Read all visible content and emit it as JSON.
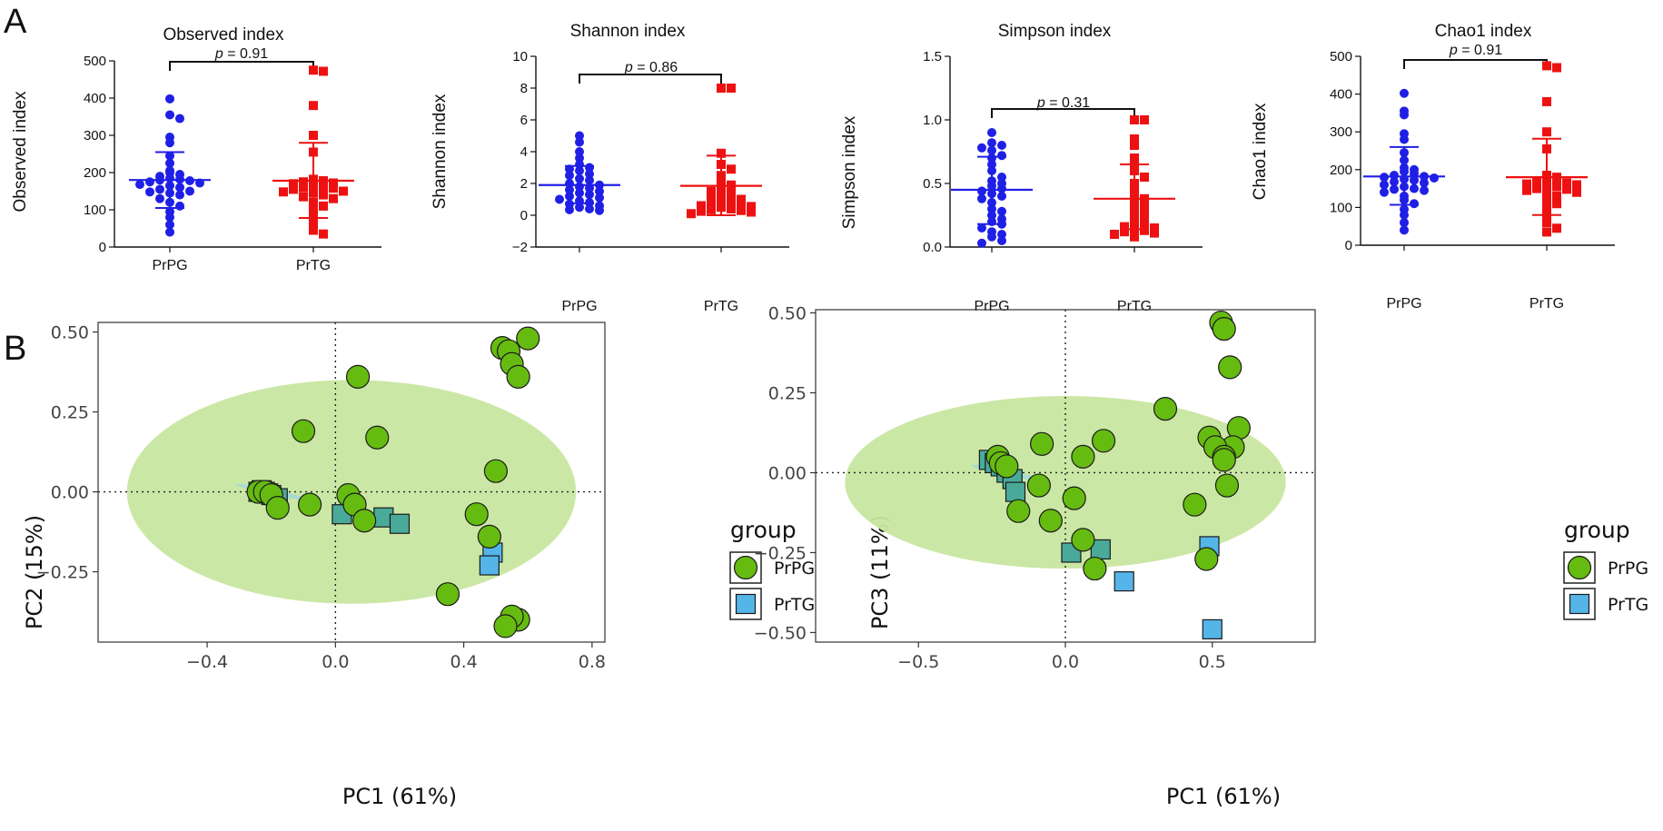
{
  "panels": {
    "A": "A",
    "B": "B"
  },
  "colors": {
    "prpg": "#1f1fe6",
    "prtg": "#ee1111",
    "green": "#66bb11",
    "blue": "#55b5e8",
    "teal": "#4aaa9a",
    "ellipse": "#c8e6a0"
  },
  "chart_data": [
    {
      "type": "scatter",
      "title": "Observed index",
      "ylabel": "Observed index",
      "ylim": [
        0,
        500
      ],
      "yticks": [
        0,
        100,
        200,
        300,
        400,
        500
      ],
      "categories": [
        "PrPG",
        "PrTG"
      ],
      "p_prefix": "p",
      "p_text": " = 0.91",
      "series": [
        {
          "name": "PrPG",
          "marker": "circle",
          "mean": 180,
          "sd_low": 105,
          "sd_high": 255,
          "values": [
            398,
            355,
            345,
            295,
            280,
            245,
            225,
            205,
            200,
            195,
            190,
            185,
            182,
            180,
            178,
            175,
            172,
            168,
            165,
            160,
            155,
            150,
            148,
            145,
            140,
            130,
            120,
            110,
            95,
            80,
            60,
            40
          ]
        },
        {
          "name": "PrTG",
          "marker": "square",
          "mean": 178,
          "sd_low": 78,
          "sd_high": 280,
          "values": [
            475,
            472,
            380,
            300,
            255,
            182,
            178,
            175,
            172,
            170,
            165,
            162,
            160,
            158,
            155,
            150,
            148,
            145,
            140,
            135,
            130,
            120,
            110,
            100,
            80,
            60,
            45,
            35
          ]
        }
      ]
    },
    {
      "type": "scatter",
      "title": "Shannon index",
      "ylabel": "Shannon index",
      "ylim": [
        -2,
        10
      ],
      "yticks": [
        -2,
        0,
        2,
        4,
        6,
        8,
        10
      ],
      "categories": [
        "PrPG",
        "PrTG"
      ],
      "p_prefix": "p",
      "p_text": " = 0.86",
      "series": [
        {
          "name": "PrPG",
          "marker": "circle",
          "mean": 1.9,
          "sd_low": 0.75,
          "sd_high": 3.1,
          "values": [
            5.0,
            4.6,
            4.0,
            3.6,
            3.2,
            3.0,
            2.9,
            2.8,
            2.6,
            2.5,
            2.3,
            2.2,
            2.0,
            1.9,
            1.8,
            1.7,
            1.6,
            1.5,
            1.4,
            1.3,
            1.2,
            1.1,
            1.0,
            0.9,
            0.8,
            0.7,
            0.6,
            0.5,
            0.4,
            0.35,
            0.3
          ]
        },
        {
          "name": "PrTG",
          "marker": "square",
          "mean": 1.85,
          "sd_low": 0.0,
          "sd_high": 3.75,
          "values": [
            8.0,
            8.0,
            3.9,
            3.2,
            2.9,
            2.5,
            2.0,
            1.9,
            1.8,
            1.6,
            1.5,
            1.3,
            1.2,
            1.1,
            1.0,
            0.9,
            0.85,
            0.8,
            0.7,
            0.6,
            0.55,
            0.5,
            0.4,
            0.35,
            0.3,
            0.25,
            0.2,
            0.1
          ]
        }
      ]
    },
    {
      "type": "scatter",
      "title": "Simpson index",
      "ylabel": "Simpson index",
      "ylim": [
        0,
        1.5
      ],
      "yticks": [
        0.0,
        0.5,
        1.0,
        1.5
      ],
      "categories": [
        "PrPG",
        "PrTG"
      ],
      "p_prefix": "p",
      "p_text": " = 0.31",
      "series": [
        {
          "name": "PrPG",
          "marker": "circle",
          "mean": 0.45,
          "sd_low": 0.18,
          "sd_high": 0.71,
          "values": [
            0.9,
            0.82,
            0.8,
            0.78,
            0.76,
            0.72,
            0.7,
            0.65,
            0.6,
            0.55,
            0.52,
            0.5,
            0.48,
            0.46,
            0.44,
            0.42,
            0.4,
            0.38,
            0.35,
            0.3,
            0.28,
            0.25,
            0.22,
            0.2,
            0.18,
            0.15,
            0.12,
            0.1,
            0.08,
            0.05,
            0.03
          ]
        },
        {
          "name": "PrTG",
          "marker": "square",
          "mean": 0.38,
          "sd_low": 0.14,
          "sd_high": 0.65,
          "values": [
            1.0,
            1.0,
            0.85,
            0.8,
            0.7,
            0.65,
            0.6,
            0.55,
            0.5,
            0.45,
            0.4,
            0.38,
            0.35,
            0.32,
            0.3,
            0.28,
            0.25,
            0.22,
            0.2,
            0.18,
            0.16,
            0.15,
            0.14,
            0.13,
            0.12,
            0.11,
            0.1,
            0.08
          ]
        }
      ]
    },
    {
      "type": "scatter",
      "title": "Chao1 index",
      "ylabel": "Chao1 index",
      "ylim": [
        0,
        500
      ],
      "yticks": [
        0,
        100,
        200,
        300,
        400,
        500
      ],
      "categories": [
        "PrPG",
        "PrTG"
      ],
      "p_prefix": "p",
      "p_text": " = 0.91",
      "series": [
        {
          "name": "PrPG",
          "marker": "circle",
          "mean": 182,
          "sd_low": 107,
          "sd_high": 260,
          "values": [
            402,
            355,
            345,
            295,
            280,
            245,
            225,
            205,
            200,
            195,
            190,
            185,
            182,
            180,
            178,
            175,
            172,
            168,
            165,
            160,
            155,
            150,
            148,
            145,
            140,
            130,
            120,
            110,
            95,
            80,
            60,
            40
          ]
        },
        {
          "name": "PrTG",
          "marker": "square",
          "mean": 180,
          "sd_low": 80,
          "sd_high": 282,
          "values": [
            475,
            470,
            380,
            300,
            255,
            185,
            180,
            175,
            172,
            170,
            165,
            162,
            160,
            158,
            155,
            150,
            148,
            145,
            140,
            135,
            130,
            120,
            110,
            100,
            80,
            60,
            45,
            35
          ]
        }
      ]
    },
    {
      "type": "scatter",
      "xlabel": "PC1 (61%)",
      "ylabel": "PC2 (15%)",
      "xlim": [
        -0.74,
        0.84
      ],
      "ylim": [
        -0.47,
        0.53
      ],
      "xticks": [
        -0.4,
        0.0,
        0.4,
        0.8
      ],
      "xtick_labels": [
        "−0.4",
        "0.0",
        "0.4",
        "0.8"
      ],
      "yticks": [
        -0.25,
        0.0,
        0.25,
        0.5
      ],
      "ytick_labels": [
        "−0.25",
        "0.00",
        "0.25",
        "0.50"
      ],
      "ellipse": {
        "cx": 0.05,
        "cy": 0.0,
        "rx": 0.7,
        "ry": 0.35
      },
      "legend_title": "group",
      "legend_items": [
        "PrPG",
        "PrTG"
      ],
      "series": [
        {
          "name": "PrTG",
          "marker": "square",
          "points": [
            [
              -0.24,
              0.0
            ],
            [
              -0.23,
              0.005
            ],
            [
              -0.22,
              0.0
            ],
            [
              -0.21,
              -0.005
            ],
            [
              -0.2,
              -0.01
            ],
            [
              -0.18,
              -0.02
            ],
            [
              0.02,
              -0.07
            ],
            [
              0.15,
              -0.08
            ],
            [
              0.2,
              -0.1
            ],
            [
              0.49,
              -0.19
            ],
            [
              0.48,
              -0.23
            ]
          ]
        },
        {
          "name": "PrPG",
          "marker": "circle",
          "points": [
            [
              0.6,
              0.48
            ],
            [
              0.52,
              0.45
            ],
            [
              0.54,
              0.44
            ],
            [
              0.55,
              0.4
            ],
            [
              0.57,
              0.36
            ],
            [
              0.07,
              0.36
            ],
            [
              -0.1,
              0.19
            ],
            [
              0.13,
              0.17
            ],
            [
              0.5,
              0.065
            ],
            [
              -0.24,
              0.0
            ],
            [
              -0.22,
              0.0
            ],
            [
              -0.2,
              -0.01
            ],
            [
              -0.18,
              -0.05
            ],
            [
              -0.08,
              -0.04
            ],
            [
              0.04,
              -0.01
            ],
            [
              0.06,
              -0.04
            ],
            [
              0.09,
              -0.09
            ],
            [
              0.44,
              -0.07
            ],
            [
              0.48,
              -0.14
            ],
            [
              0.35,
              -0.32
            ],
            [
              0.57,
              -0.4
            ],
            [
              0.55,
              -0.39
            ],
            [
              0.53,
              -0.42
            ]
          ]
        }
      ]
    },
    {
      "type": "scatter",
      "xlabel": "PC1 (61%)",
      "ylabel": "PC3 (11%)",
      "xlim": [
        -0.85,
        0.85
      ],
      "ylim": [
        -0.53,
        0.51
      ],
      "xticks": [
        -0.5,
        0.0,
        0.5
      ],
      "xtick_labels": [
        "−0.5",
        "0.0",
        "0.5"
      ],
      "yticks": [
        -0.5,
        -0.25,
        0.0,
        0.25,
        0.5
      ],
      "ytick_labels": [
        "−0.50",
        "−0.25",
        "0.00",
        "0.25",
        "0.50"
      ],
      "ellipse": {
        "cx": 0.0,
        "cy": -0.03,
        "rx": 0.75,
        "ry": 0.27
      },
      "legend_title": "group",
      "legend_items": [
        "PrPG",
        "PrTG"
      ],
      "series": [
        {
          "name": "PrTG",
          "marker": "square",
          "points": [
            [
              -0.26,
              0.04
            ],
            [
              -0.24,
              0.03
            ],
            [
              -0.22,
              0.02
            ],
            [
              -0.2,
              0.0
            ],
            [
              -0.18,
              -0.02
            ],
            [
              -0.17,
              -0.06
            ],
            [
              0.02,
              -0.25
            ],
            [
              0.12,
              -0.24
            ],
            [
              0.2,
              -0.34
            ],
            [
              0.49,
              -0.23
            ],
            [
              0.5,
              -0.49
            ]
          ]
        },
        {
          "name": "PrPG",
          "marker": "circle",
          "points": [
            [
              0.53,
              0.47
            ],
            [
              0.54,
              0.45
            ],
            [
              0.56,
              0.33
            ],
            [
              0.34,
              0.2
            ],
            [
              0.59,
              0.14
            ],
            [
              0.49,
              0.11
            ],
            [
              0.13,
              0.1
            ],
            [
              -0.08,
              0.09
            ],
            [
              0.57,
              0.08
            ],
            [
              0.51,
              0.08
            ],
            [
              0.06,
              0.05
            ],
            [
              0.54,
              0.05
            ],
            [
              -0.23,
              0.05
            ],
            [
              -0.22,
              0.03
            ],
            [
              -0.2,
              0.02
            ],
            [
              0.54,
              0.04
            ],
            [
              -0.09,
              -0.04
            ],
            [
              0.55,
              -0.04
            ],
            [
              0.03,
              -0.08
            ],
            [
              0.44,
              -0.1
            ],
            [
              -0.16,
              -0.12
            ],
            [
              -0.05,
              -0.15
            ],
            [
              0.06,
              -0.21
            ],
            [
              0.1,
              -0.3
            ],
            [
              0.48,
              -0.27
            ]
          ]
        }
      ]
    }
  ]
}
